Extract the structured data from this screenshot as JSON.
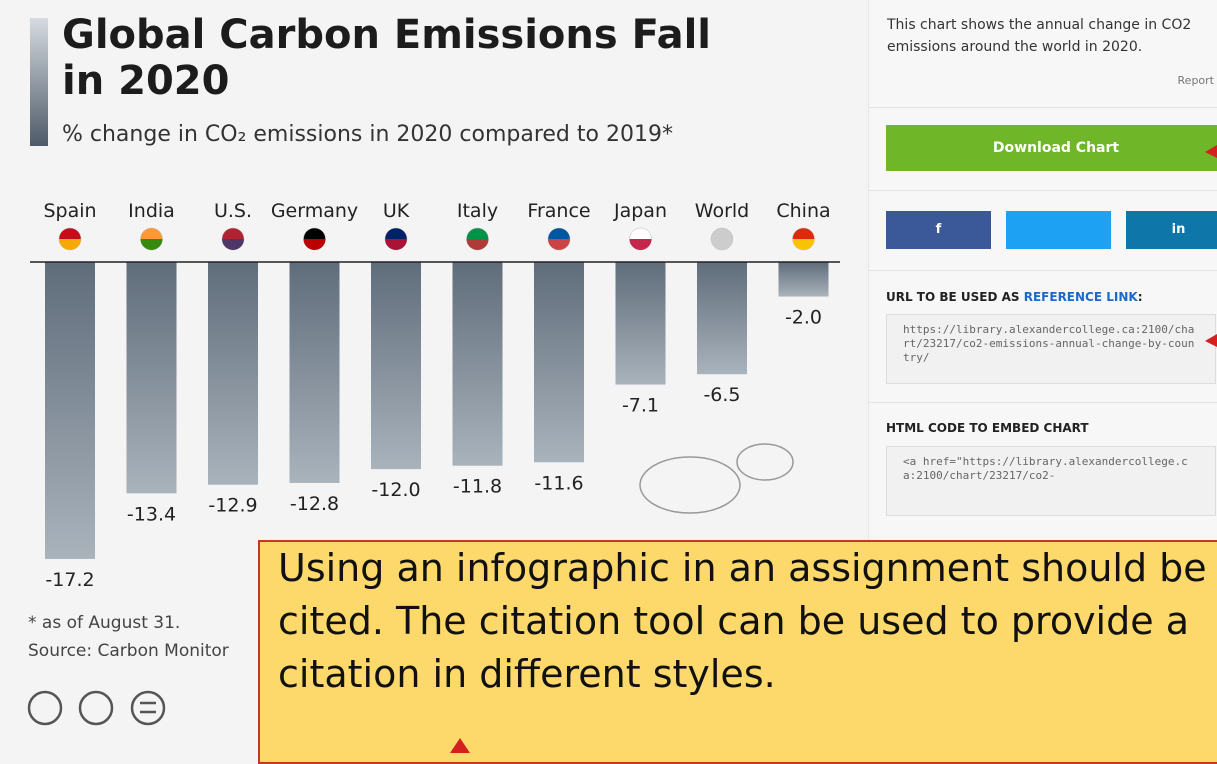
{
  "chart_data": {
    "type": "bar",
    "title": "Global Carbon Emissions Fall in 2020",
    "subtitle": "% change in CO₂ emissions in 2020 compared to 2019*",
    "categories": [
      "Spain",
      "India",
      "U.S.",
      "Germany",
      "UK",
      "Italy",
      "France",
      "Japan",
      "World",
      "China"
    ],
    "values": [
      -17.2,
      -13.4,
      -12.9,
      -12.8,
      -12,
      -11.8,
      -11.6,
      -7.1,
      -6.5,
      -2
    ],
    "value_labels": [
      "-17.2",
      "-13.4",
      "-12.9",
      "-12.8",
      "-12.0",
      "-11.8",
      "-11.6",
      "-7.1",
      "-6.5",
      "-2.0"
    ],
    "color": "#6b7886",
    "ylim": [
      -19,
      0
    ],
    "notes": [
      "* as of August 31.",
      "Source: Carbon Monitor"
    ]
  },
  "sidebar": {
    "description": "This chart shows the annual change in CO2 emissions around the world in 2020.",
    "report": "Report",
    "download": "Download Chart",
    "social": [
      "f",
      "in"
    ],
    "url_heading": [
      "URL TO BE USED AS ",
      "REFERENCE LINK",
      ":"
    ],
    "url": "https://library.alexandercollege.ca:2100/chart/23217/co2-emissions-annual-change-by-country/",
    "embed_heading": "HTML CODE TO EMBED CHART",
    "embed_code": "<a href=\"https://library.alexandercollege.ca:2100/chart/23217/co2-"
  },
  "callout": {
    "lines": [
      "Using an infographic in an assignment should be",
      "cited. The citation tool can be used to provide a",
      "citation in different styles."
    ]
  }
}
